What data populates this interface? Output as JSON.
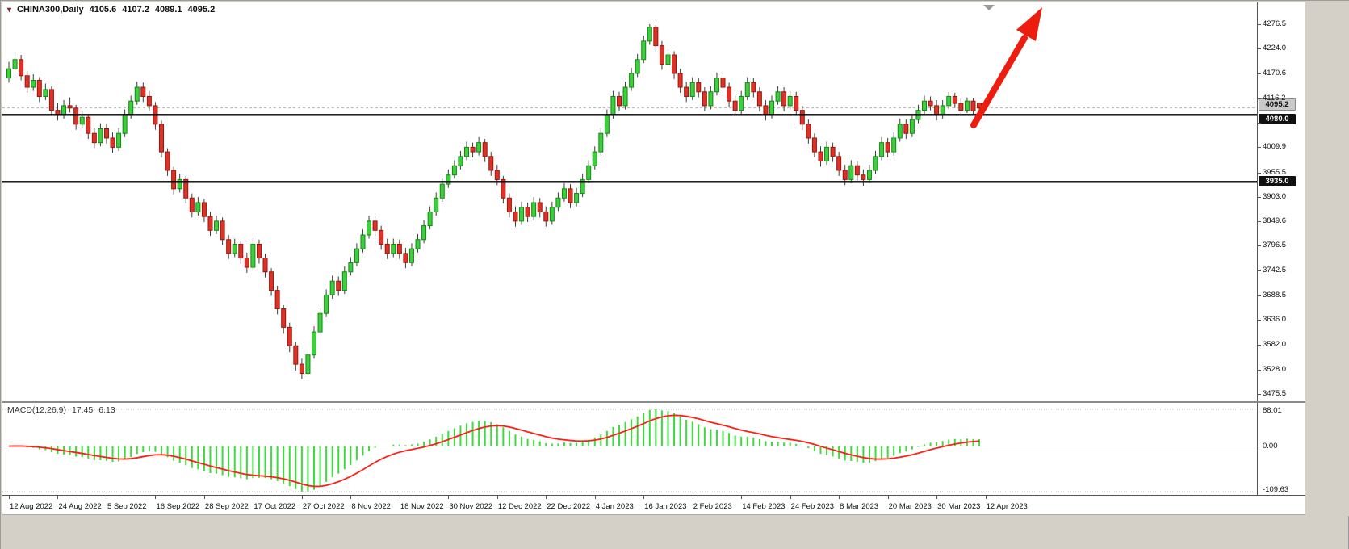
{
  "header": {
    "symbol_period": "CHINA300,Daily",
    "open": "4105.6",
    "high": "4107.2",
    "low": "4089.1",
    "close": "4095.2"
  },
  "colors": {
    "up": "#3ecf3e",
    "up_border": "#128a12",
    "down": "#e03127",
    "down_border": "#96180f",
    "wick": "#3c3c3c",
    "histogram": "#3ddb3d",
    "signal": "#ff2015",
    "hline": "#000000",
    "arrow": "#ec1c0f",
    "current_line": "#b5b5b5"
  },
  "chart_data": {
    "type": "candlestick",
    "title": "CHINA300,Daily",
    "symbol": "CHINA300",
    "timeframe": "Daily",
    "last_ohlc": {
      "open": 4105.6,
      "high": 4107.2,
      "low": 4089.1,
      "close": 4095.2
    },
    "y_range": [
      3475.5,
      4276.5
    ],
    "y_axis_labels": [
      "4276.5",
      "4224.0",
      "4170.6",
      "4116.2",
      "4063.5",
      "4009.9",
      "3955.5",
      "3903.0",
      "3849.6",
      "3796.5",
      "3742.5",
      "3688.5",
      "3636.0",
      "3582.0",
      "3528.0",
      "3475.5"
    ],
    "x_tick_labels": [
      "12 Aug 2022",
      "24 Aug 2022",
      "5 Sep 2022",
      "16 Sep 2022",
      "28 Sep 2022",
      "17 Oct 2022",
      "27 Oct 2022",
      "8 Nov 2022",
      "18 Nov 2022",
      "30 Nov 2022",
      "12 Dec 2022",
      "22 Dec 2022",
      "4 Jan 2023",
      "16 Jan 2023",
      "2 Feb 2023",
      "14 Feb 2023",
      "24 Feb 2023",
      "8 Mar 2023",
      "20 Mar 2023",
      "30 Mar 2023",
      "12 Apr 2023"
    ],
    "candles_per_tick": 8,
    "current_price": {
      "value": 4095.2,
      "label": "4095.2"
    },
    "hlines": [
      {
        "value": 4080.0,
        "label": "4080.0"
      },
      {
        "value": 3935.0,
        "label": "3935.0"
      }
    ],
    "annotation_arrow": {
      "type": "up-trend-arrow",
      "color": "#ec1c0f"
    },
    "macd": {
      "label": "MACD(12,26,9)",
      "params": [
        12,
        26,
        9
      ],
      "values_text": [
        "17.45",
        "6.13"
      ],
      "values": [
        17.45,
        6.13
      ],
      "axis_labels": [
        "88.01",
        "0.00",
        "-109.63"
      ],
      "axis_values": [
        88.01,
        0,
        -109.63
      ]
    },
    "candles": [
      [
        4160,
        4195,
        4150,
        4180
      ],
      [
        4180,
        4215,
        4170,
        4200
      ],
      [
        4200,
        4210,
        4155,
        4165
      ],
      [
        4165,
        4175,
        4128,
        4140
      ],
      [
        4140,
        4168,
        4132,
        4155
      ],
      [
        4155,
        4162,
        4108,
        4120
      ],
      [
        4120,
        4148,
        4112,
        4135
      ],
      [
        4135,
        4142,
        4078,
        4090
      ],
      [
        4090,
        4105,
        4068,
        4080
      ],
      [
        4080,
        4112,
        4072,
        4100
      ],
      [
        4100,
        4118,
        4085,
        4095
      ],
      [
        4095,
        4102,
        4048,
        4060
      ],
      [
        4060,
        4088,
        4052,
        4075
      ],
      [
        4075,
        4082,
        4028,
        4040
      ],
      [
        4040,
        4052,
        4008,
        4020
      ],
      [
        4020,
        4062,
        4012,
        4050
      ],
      [
        4050,
        4060,
        4018,
        4030
      ],
      [
        4030,
        4042,
        3998,
        4010
      ],
      [
        4010,
        4052,
        4002,
        4040
      ],
      [
        4040,
        4092,
        4032,
        4080
      ],
      [
        4080,
        4122,
        4072,
        4110
      ],
      [
        4110,
        4152,
        4102,
        4140
      ],
      [
        4140,
        4150,
        4108,
        4120
      ],
      [
        4120,
        4132,
        4088,
        4100
      ],
      [
        4100,
        4108,
        4048,
        4060
      ],
      [
        4060,
        4068,
        3988,
        4000
      ],
      [
        4000,
        4008,
        3948,
        3960
      ],
      [
        3960,
        3968,
        3908,
        3920
      ],
      [
        3920,
        3952,
        3912,
        3940
      ],
      [
        3940,
        3948,
        3888,
        3900
      ],
      [
        3900,
        3910,
        3858,
        3870
      ],
      [
        3870,
        3902,
        3862,
        3890
      ],
      [
        3890,
        3898,
        3848,
        3860
      ],
      [
        3860,
        3870,
        3818,
        3830
      ],
      [
        3830,
        3862,
        3822,
        3850
      ],
      [
        3850,
        3858,
        3798,
        3810
      ],
      [
        3810,
        3820,
        3768,
        3780
      ],
      [
        3780,
        3812,
        3772,
        3800
      ],
      [
        3800,
        3808,
        3758,
        3770
      ],
      [
        3770,
        3782,
        3738,
        3750
      ],
      [
        3750,
        3812,
        3742,
        3800
      ],
      [
        3800,
        3810,
        3758,
        3770
      ],
      [
        3770,
        3780,
        3728,
        3740
      ],
      [
        3740,
        3748,
        3688,
        3700
      ],
      [
        3700,
        3710,
        3648,
        3660
      ],
      [
        3660,
        3668,
        3606,
        3620
      ],
      [
        3620,
        3630,
        3566,
        3580
      ],
      [
        3580,
        3588,
        3526,
        3540
      ],
      [
        3540,
        3552,
        3508,
        3520
      ],
      [
        3520,
        3572,
        3512,
        3560
      ],
      [
        3560,
        3622,
        3552,
        3610
      ],
      [
        3610,
        3662,
        3602,
        3650
      ],
      [
        3650,
        3702,
        3642,
        3690
      ],
      [
        3690,
        3732,
        3682,
        3720
      ],
      [
        3720,
        3730,
        3688,
        3700
      ],
      [
        3700,
        3752,
        3692,
        3740
      ],
      [
        3740,
        3772,
        3732,
        3760
      ],
      [
        3760,
        3802,
        3752,
        3790
      ],
      [
        3790,
        3832,
        3782,
        3820
      ],
      [
        3820,
        3862,
        3812,
        3850
      ],
      [
        3850,
        3860,
        3818,
        3830
      ],
      [
        3830,
        3840,
        3788,
        3800
      ],
      [
        3800,
        3812,
        3768,
        3780
      ],
      [
        3780,
        3812,
        3772,
        3800
      ],
      [
        3800,
        3810,
        3768,
        3780
      ],
      [
        3780,
        3792,
        3748,
        3760
      ],
      [
        3760,
        3802,
        3752,
        3790
      ],
      [
        3790,
        3822,
        3782,
        3810
      ],
      [
        3810,
        3852,
        3802,
        3840
      ],
      [
        3840,
        3882,
        3832,
        3870
      ],
      [
        3870,
        3912,
        3862,
        3900
      ],
      [
        3900,
        3942,
        3892,
        3930
      ],
      [
        3930,
        3962,
        3922,
        3950
      ],
      [
        3950,
        3982,
        3942,
        3970
      ],
      [
        3970,
        4002,
        3962,
        3990
      ],
      [
        3990,
        4022,
        3982,
        4010
      ],
      [
        4010,
        4020,
        3988,
        4000
      ],
      [
        4000,
        4032,
        3992,
        4020
      ],
      [
        4020,
        4028,
        3978,
        3990
      ],
      [
        3990,
        4000,
        3948,
        3960
      ],
      [
        3960,
        3972,
        3928,
        3940
      ],
      [
        3940,
        3948,
        3888,
        3900
      ],
      [
        3900,
        3910,
        3858,
        3870
      ],
      [
        3870,
        3882,
        3838,
        3850
      ],
      [
        3850,
        3892,
        3842,
        3880
      ],
      [
        3880,
        3890,
        3848,
        3860
      ],
      [
        3860,
        3902,
        3852,
        3890
      ],
      [
        3890,
        3900,
        3858,
        3870
      ],
      [
        3870,
        3882,
        3838,
        3850
      ],
      [
        3850,
        3892,
        3842,
        3880
      ],
      [
        3880,
        3912,
        3872,
        3900
      ],
      [
        3900,
        3932,
        3892,
        3920
      ],
      [
        3920,
        3930,
        3878,
        3890
      ],
      [
        3890,
        3922,
        3882,
        3910
      ],
      [
        3910,
        3952,
        3902,
        3940
      ],
      [
        3940,
        3982,
        3932,
        3970
      ],
      [
        3970,
        4012,
        3962,
        4000
      ],
      [
        4000,
        4052,
        3992,
        4040
      ],
      [
        4040,
        4092,
        4032,
        4080
      ],
      [
        4080,
        4132,
        4072,
        4120
      ],
      [
        4120,
        4130,
        4088,
        4100
      ],
      [
        4100,
        4152,
        4092,
        4140
      ],
      [
        4140,
        4182,
        4132,
        4170
      ],
      [
        4170,
        4212,
        4162,
        4200
      ],
      [
        4200,
        4252,
        4192,
        4240
      ],
      [
        4240,
        4276.5,
        4232,
        4270
      ],
      [
        4270,
        4275,
        4218,
        4230
      ],
      [
        4230,
        4240,
        4178,
        4190
      ],
      [
        4190,
        4222,
        4182,
        4210
      ],
      [
        4210,
        4218,
        4158,
        4170
      ],
      [
        4170,
        4180,
        4128,
        4140
      ],
      [
        4140,
        4152,
        4108,
        4120
      ],
      [
        4120,
        4162,
        4112,
        4150
      ],
      [
        4150,
        4160,
        4118,
        4130
      ],
      [
        4130,
        4140,
        4088,
        4100
      ],
      [
        4100,
        4142,
        4092,
        4130
      ],
      [
        4130,
        4172,
        4122,
        4160
      ],
      [
        4160,
        4170,
        4128,
        4140
      ],
      [
        4140,
        4150,
        4098,
        4110
      ],
      [
        4110,
        4122,
        4078,
        4090
      ],
      [
        4090,
        4132,
        4082,
        4120
      ],
      [
        4120,
        4162,
        4112,
        4150
      ],
      [
        4150,
        4160,
        4118,
        4130
      ],
      [
        4130,
        4140,
        4088,
        4100
      ],
      [
        4100,
        4112,
        4068,
        4080
      ],
      [
        4080,
        4122,
        4072,
        4110
      ],
      [
        4110,
        4142,
        4102,
        4130
      ],
      [
        4130,
        4140,
        4088,
        4100
      ],
      [
        4100,
        4132,
        4092,
        4120
      ],
      [
        4120,
        4130,
        4078,
        4090
      ],
      [
        4090,
        4100,
        4048,
        4060
      ],
      [
        4060,
        4070,
        4018,
        4030
      ],
      [
        4030,
        4040,
        3988,
        4000
      ],
      [
        4000,
        4012,
        3968,
        3980
      ],
      [
        3980,
        4022,
        3972,
        4010
      ],
      [
        4010,
        4020,
        3978,
        3990
      ],
      [
        3990,
        4000,
        3948,
        3960
      ],
      [
        3960,
        3972,
        3928,
        3940
      ],
      [
        3940,
        3982,
        3932,
        3970
      ],
      [
        3970,
        3980,
        3938,
        3950
      ],
      [
        3950,
        3962,
        3926,
        3940
      ],
      [
        3940,
        3972,
        3932,
        3960
      ],
      [
        3960,
        4002,
        3952,
        3990
      ],
      [
        3990,
        4032,
        3982,
        4020
      ],
      [
        4020,
        4030,
        3988,
        4000
      ],
      [
        4000,
        4042,
        3992,
        4030
      ],
      [
        4030,
        4072,
        4022,
        4060
      ],
      [
        4060,
        4070,
        4028,
        4040
      ],
      [
        4040,
        4082,
        4032,
        4070
      ],
      [
        4070,
        4102,
        4062,
        4090
      ],
      [
        4090,
        4122,
        4082,
        4110
      ],
      [
        4110,
        4120,
        4090,
        4100
      ],
      [
        4100,
        4112,
        4068,
        4080
      ],
      [
        4080,
        4112,
        4072,
        4100
      ],
      [
        4100,
        4130,
        4092,
        4120
      ],
      [
        4120,
        4128,
        4095,
        4105
      ],
      [
        4105,
        4115,
        4080,
        4090
      ],
      [
        4090,
        4118,
        4084,
        4110
      ],
      [
        4110,
        4116,
        4082,
        4089
      ],
      [
        4105.6,
        4107.2,
        4089.1,
        4095.2
      ]
    ]
  }
}
